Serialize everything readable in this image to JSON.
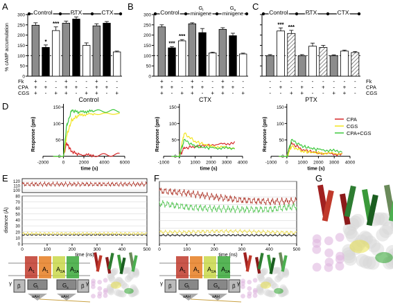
{
  "panels": {
    "A": {
      "letter": "A",
      "ylabel": "% cAMP accumulation",
      "yticks": [
        0,
        50,
        100,
        150,
        200,
        250,
        300
      ],
      "groups": [
        "Control",
        "PTX",
        "CTX"
      ],
      "row_labels": [
        "Fk",
        "CPA",
        "CGS"
      ],
      "rows": [
        [
          "+",
          "+",
          "+"
        ],
        [
          "-",
          "+",
          "-"
        ],
        [
          "-",
          "-",
          "+"
        ],
        [
          "+",
          "+",
          "+"
        ],
        [
          "-",
          "+",
          "-"
        ],
        [
          "-",
          "-",
          "+"
        ],
        [
          "+",
          "+",
          "+"
        ],
        [
          "-",
          "+",
          "-"
        ],
        [
          "-",
          "-",
          "+"
        ]
      ],
      "stars": [
        "*",
        "***"
      ]
    },
    "B": {
      "letter": "B",
      "groups": [
        "Control",
        "G",
        "minigene",
        "G",
        "minigene"
      ],
      "sub1": "i",
      "sub2": "s",
      "yticks": [
        0,
        50,
        100,
        150,
        200,
        250,
        300
      ],
      "stars": [
        "***",
        "***"
      ],
      "rows": [
        [
          "+",
          "+",
          "+"
        ],
        [
          "-",
          "+",
          "-"
        ],
        [
          "-",
          "-",
          "+"
        ],
        [
          "+",
          "+",
          "+"
        ],
        [
          "-",
          "+",
          "-"
        ],
        [
          "-",
          "-",
          "+"
        ],
        [
          "+",
          "+",
          "+"
        ],
        [
          "-",
          "+",
          "-"
        ],
        [
          "-",
          "-",
          "+"
        ]
      ]
    },
    "C": {
      "letter": "C",
      "groups": [
        "Control",
        "PTX",
        "CTX"
      ],
      "row_labels": [
        "Fk",
        "CPA",
        "CGS"
      ],
      "yticks": [
        0,
        50,
        100,
        150,
        200,
        250,
        300
      ],
      "stars": [
        "***",
        "***"
      ],
      "rows": [
        [
          "-",
          "-",
          "-"
        ],
        [
          "-",
          "+",
          "-"
        ],
        [
          "-",
          "-",
          "+"
        ],
        [
          "-",
          "+",
          "+"
        ],
        [
          "-",
          "-",
          "-"
        ],
        [
          "-",
          "+",
          "-"
        ],
        [
          "-",
          "-",
          "+"
        ],
        [
          "-",
          "+",
          "+"
        ],
        [
          "-",
          "-",
          "-"
        ]
      ]
    },
    "D": {
      "letter": "D",
      "titles": [
        "Control",
        "CTX",
        "PTX"
      ],
      "ylabel": "Response (pm)",
      "xlabel": "time (s)",
      "legend": [
        "CPA",
        "CGS",
        "CPA+CGS"
      ],
      "legend_colors": [
        "#d62728",
        "#f2e41c",
        "#3cc83c"
      ],
      "xticks1": [
        -2000,
        0,
        2000,
        4000,
        6000
      ],
      "xticks2": [
        -1000,
        0,
        1000,
        2000,
        3000,
        4000
      ],
      "yticks": [
        0,
        50,
        100,
        150
      ]
    },
    "E": {
      "letter": "E",
      "ylabel": "distance (Å)",
      "xlabel": "time (ns)",
      "xticks": [
        0,
        100,
        200,
        300,
        400,
        500
      ],
      "yticks_top": [
        100,
        110,
        120
      ],
      "yticks_bottom": [
        0,
        10,
        20,
        30,
        40,
        50,
        60,
        70,
        80
      ]
    },
    "F": {
      "letter": "F",
      "xlabel": "time (ns)",
      "xticks": [
        0,
        100,
        200,
        300,
        400,
        500
      ],
      "yticks": [
        0,
        10,
        20,
        30,
        40,
        50,
        60,
        70,
        80
      ]
    },
    "G": {
      "letter": "G"
    },
    "schematic": {
      "A1": "A",
      "A1sub": "1",
      "A2A": "A",
      "A2Asub": "2A",
      "beta": "β",
      "gamma": "γ",
      "Gi": "G",
      "Gisub": "i",
      "Gs": "G",
      "Gssub": "s",
      "aAH": "αAH"
    }
  },
  "chart_data": [
    {
      "type": "bar",
      "panel": "A",
      "categories": [
        "1",
        "2",
        "3",
        "4",
        "5",
        "6",
        "7",
        "8",
        "9"
      ],
      "values": [
        248,
        140,
        222,
        258,
        278,
        150,
        245,
        258,
        118
      ],
      "errors": [
        12,
        12,
        18,
        10,
        10,
        12,
        10,
        8,
        4
      ],
      "fills": [
        "gray",
        "black",
        "white",
        "gray",
        "black",
        "white",
        "gray",
        "black",
        "white"
      ],
      "ylim": [
        0,
        300
      ]
    },
    {
      "type": "bar",
      "panel": "B",
      "categories": [
        "1",
        "2",
        "3",
        "4",
        "5",
        "6",
        "7",
        "8",
        "9"
      ],
      "values": [
        240,
        138,
        172,
        255,
        212,
        113,
        228,
        197,
        108
      ],
      "errors": [
        10,
        6,
        6,
        5,
        20,
        4,
        8,
        12,
        4
      ],
      "fills": [
        "gray",
        "black",
        "white",
        "gray",
        "black",
        "white",
        "gray",
        "black",
        "white"
      ],
      "ylim": [
        0,
        300
      ]
    },
    {
      "type": "bar",
      "panel": "C",
      "categories": [
        "1",
        "2",
        "3",
        "4",
        "5",
        "6",
        "7",
        "8",
        "9"
      ],
      "values": [
        100,
        220,
        208,
        100,
        146,
        140,
        100,
        122,
        115
      ],
      "errors": [
        5,
        15,
        15,
        5,
        15,
        10,
        4,
        5,
        5
      ],
      "fills": [
        "gray",
        "white",
        "hatch",
        "gray",
        "white",
        "hatch",
        "gray",
        "white",
        "hatch"
      ],
      "ylim": [
        0,
        300
      ]
    },
    {
      "type": "line",
      "panel": "D-Control",
      "xlim": [
        -2000,
        6000
      ],
      "ylim": [
        -5,
        160
      ],
      "series": [
        {
          "name": "CPA",
          "x": [
            -1000,
            0,
            300,
            800,
            1500,
            3000,
            5500
          ],
          "y": [
            0,
            0,
            40,
            15,
            5,
            3,
            5
          ]
        },
        {
          "name": "CGS",
          "x": [
            -1000,
            0,
            300,
            800,
            1500,
            3000,
            5500
          ],
          "y": [
            0,
            0,
            60,
            110,
            125,
            130,
            130
          ]
        },
        {
          "name": "CPA+CGS",
          "x": [
            -1000,
            0,
            300,
            800,
            1500,
            3000,
            5500
          ],
          "y": [
            0,
            0,
            90,
            140,
            135,
            138,
            138
          ]
        }
      ]
    },
    {
      "type": "line",
      "panel": "D-CTX",
      "xlim": [
        -1000,
        4000
      ],
      "ylim": [
        -5,
        160
      ],
      "series": [
        {
          "name": "CPA",
          "x": [
            -500,
            0,
            300,
            1000,
            2000,
            3500
          ],
          "y": [
            0,
            0,
            25,
            30,
            35,
            40
          ]
        },
        {
          "name": "CGS",
          "x": [
            -500,
            0,
            300,
            1000,
            2000,
            3500
          ],
          "y": [
            0,
            0,
            70,
            45,
            30,
            25
          ]
        },
        {
          "name": "CPA+CGS",
          "x": [
            -500,
            0,
            300,
            1000,
            2000,
            3500
          ],
          "y": [
            0,
            0,
            50,
            30,
            25,
            25
          ]
        }
      ]
    },
    {
      "type": "line",
      "panel": "D-PTX",
      "xlim": [
        -1000,
        4000
      ],
      "ylim": [
        -5,
        160
      ],
      "series": [
        {
          "name": "CPA",
          "x": [
            -500,
            0,
            300,
            1000,
            2000,
            3500
          ],
          "y": [
            0,
            0,
            40,
            20,
            10,
            5
          ]
        },
        {
          "name": "CGS",
          "x": [
            -500,
            0,
            300,
            1000,
            2000,
            3500
          ],
          "y": [
            0,
            0,
            30,
            15,
            10,
            8
          ]
        },
        {
          "name": "CPA+CGS",
          "x": [
            -500,
            0,
            300,
            1000,
            2000,
            3500
          ],
          "y": [
            0,
            0,
            50,
            30,
            20,
            15
          ]
        }
      ]
    },
    {
      "type": "line",
      "panel": "E",
      "xlim": [
        0,
        500
      ],
      "series": [
        {
          "color": "#b03a2e",
          "level": 113
        },
        {
          "color": "#000000",
          "level": 15
        },
        {
          "color": "#e8d84a",
          "level": 17
        }
      ]
    },
    {
      "type": "line",
      "panel": "F",
      "xlim": [
        0,
        500
      ],
      "series": [
        {
          "color": "#b03a2e",
          "x": [
            0,
            100,
            200,
            300,
            400,
            500
          ],
          "y": [
            68,
            65,
            60,
            56,
            54,
            55
          ]
        },
        {
          "color": "#5cc85c",
          "x": [
            0,
            100,
            200,
            300,
            400,
            500
          ],
          "y": [
            52,
            47,
            45,
            44,
            44,
            48
          ]
        },
        {
          "color": "#e8d84a",
          "x": [
            0,
            100,
            200,
            300,
            400,
            500
          ],
          "y": [
            15,
            15,
            16,
            16,
            15,
            14
          ]
        },
        {
          "color": "#000000",
          "x": [
            0,
            100,
            200,
            300,
            400,
            500
          ],
          "y": [
            11,
            11,
            11,
            11,
            11,
            11
          ]
        }
      ]
    }
  ]
}
